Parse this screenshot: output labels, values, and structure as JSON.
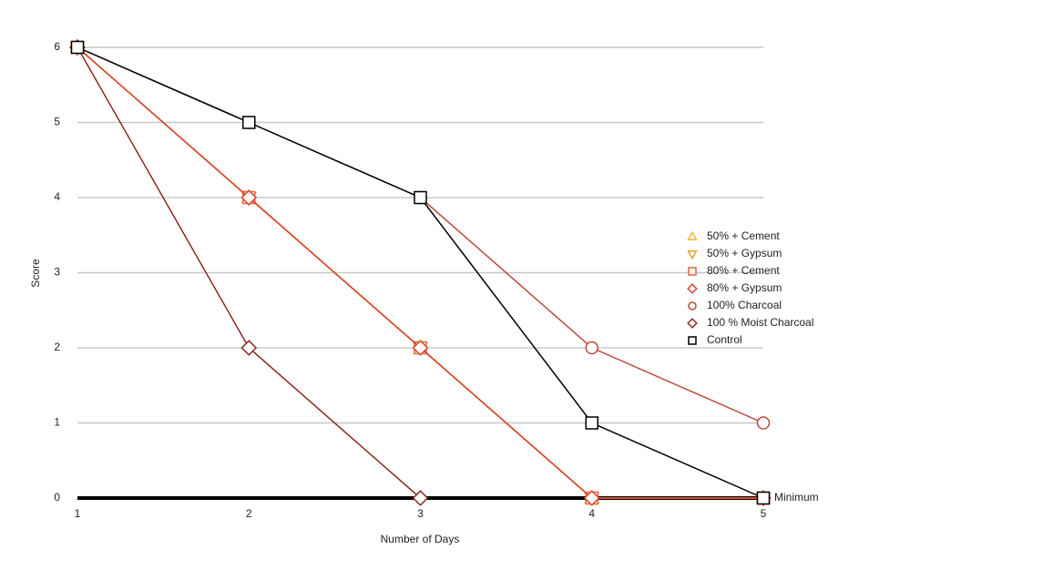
{
  "chart_data": {
    "type": "line",
    "x_label": "Number of Days",
    "y_label": "Score",
    "x": [
      1,
      2,
      3,
      4,
      5
    ],
    "xlim": [
      1,
      5
    ],
    "xticks": [
      1,
      2,
      3,
      4,
      5
    ],
    "ylim": [
      0,
      6
    ],
    "yticks": [
      0,
      1,
      2,
      3,
      4,
      5,
      6
    ],
    "grid": true,
    "legend": "right",
    "reference_line": {
      "value": 0,
      "label": "Minimum",
      "color": "#000000"
    },
    "series": [
      {
        "name": "50% + Cement",
        "color": "#f2b73a",
        "marker": "triangle-up",
        "values": [
          6,
          4,
          2,
          0,
          0
        ]
      },
      {
        "name": "50% + Gypsum",
        "color": "#ee9d2a",
        "marker": "triangle-down",
        "values": [
          6,
          4,
          2,
          0,
          0
        ]
      },
      {
        "name": "80% + Cement",
        "color": "#e2653a",
        "marker": "square",
        "values": [
          6,
          4,
          2,
          0,
          0
        ]
      },
      {
        "name": "80% + Gypsum",
        "color": "#d8452e",
        "marker": "diamond",
        "values": [
          6,
          4,
          2,
          0,
          0
        ]
      },
      {
        "name": "100% Charcoal",
        "color": "#b94a3c",
        "marker": "circle",
        "values": [
          6,
          5,
          4,
          2,
          1
        ]
      },
      {
        "name": "100 % Moist Charcoal",
        "color": "#8c2a22",
        "marker": "diamond",
        "values": [
          6,
          2,
          0,
          null,
          null
        ]
      },
      {
        "name": "Control",
        "color": "#000000",
        "marker": "square",
        "values": [
          6,
          5,
          4,
          1,
          0
        ]
      }
    ]
  }
}
